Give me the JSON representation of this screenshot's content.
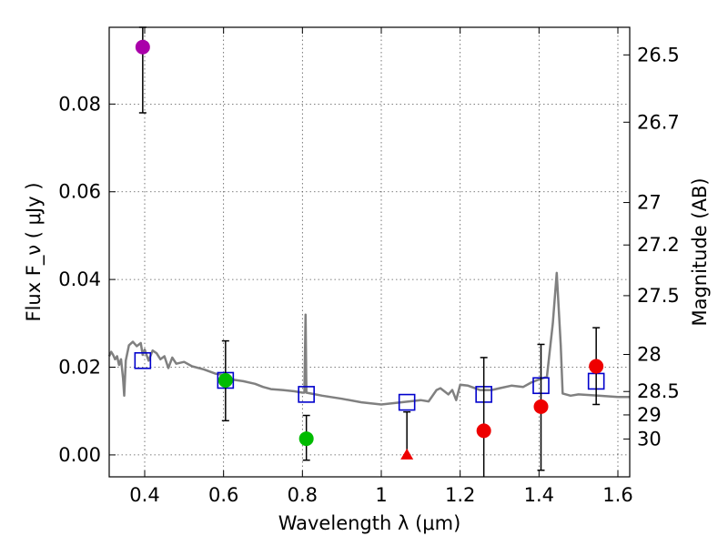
{
  "chart_data": {
    "type": "scatter",
    "xlabel": "Wavelength  λ (μm)",
    "ylabel": "Flux  F_ν  ( μJy )",
    "y2label": "Magnitude (AB)",
    "xlim": [
      0.31,
      1.63
    ],
    "ylim": [
      -0.005,
      0.0975
    ],
    "x_ticks": [
      0.4,
      0.6,
      0.8,
      1.0,
      1.2,
      1.4,
      1.6
    ],
    "x_tick_labels": [
      "0.4",
      "0.6",
      "0.8",
      "1",
      "1.2",
      "1.4",
      "1.6"
    ],
    "y_ticks": [
      0.0,
      0.02,
      0.04,
      0.06,
      0.08
    ],
    "y_tick_labels": [
      "0.00",
      "0.02",
      "0.04",
      "0.06",
      "0.08"
    ],
    "y2_ticks": [
      26.5,
      26.7,
      27,
      27.2,
      27.5,
      28,
      28.5,
      29,
      30
    ],
    "y2_tick_labels": [
      "26.5",
      "26.7",
      "27",
      "27.2",
      "27.5",
      "28",
      "28.5",
      "29",
      "30"
    ],
    "grid": true,
    "colors": {
      "model": "#808080",
      "model_points": "#0000cc",
      "purple": "#aa00aa",
      "green": "#00bb00",
      "red": "#ee0000",
      "errorbar": "#000000"
    },
    "model_spectrum": [
      [
        0.31,
        0.0225
      ],
      [
        0.315,
        0.0235
      ],
      [
        0.32,
        0.0228
      ],
      [
        0.325,
        0.0218
      ],
      [
        0.33,
        0.0225
      ],
      [
        0.335,
        0.0205
      ],
      [
        0.34,
        0.0218
      ],
      [
        0.345,
        0.0175
      ],
      [
        0.348,
        0.0135
      ],
      [
        0.352,
        0.0215
      ],
      [
        0.36,
        0.025
      ],
      [
        0.37,
        0.0258
      ],
      [
        0.38,
        0.0248
      ],
      [
        0.39,
        0.0255
      ],
      [
        0.395,
        0.0228
      ],
      [
        0.4,
        0.024
      ],
      [
        0.41,
        0.0215
      ],
      [
        0.42,
        0.0238
      ],
      [
        0.43,
        0.0232
      ],
      [
        0.44,
        0.0218
      ],
      [
        0.45,
        0.0225
      ],
      [
        0.46,
        0.0198
      ],
      [
        0.47,
        0.0222
      ],
      [
        0.48,
        0.0208
      ],
      [
        0.5,
        0.0212
      ],
      [
        0.52,
        0.0202
      ],
      [
        0.55,
        0.0195
      ],
      [
        0.58,
        0.0185
      ],
      [
        0.6,
        0.0182
      ],
      [
        0.62,
        0.0172
      ],
      [
        0.65,
        0.0168
      ],
      [
        0.68,
        0.0162
      ],
      [
        0.7,
        0.0155
      ],
      [
        0.72,
        0.015
      ],
      [
        0.75,
        0.0148
      ],
      [
        0.78,
        0.0145
      ],
      [
        0.8,
        0.0142
      ],
      [
        0.805,
        0.0142
      ],
      [
        0.808,
        0.032
      ],
      [
        0.81,
        0.0142
      ],
      [
        0.85,
        0.0135
      ],
      [
        0.9,
        0.0128
      ],
      [
        0.95,
        0.012
      ],
      [
        1.0,
        0.0115
      ],
      [
        1.05,
        0.012
      ],
      [
        1.1,
        0.0125
      ],
      [
        1.12,
        0.0122
      ],
      [
        1.14,
        0.0148
      ],
      [
        1.15,
        0.0152
      ],
      [
        1.17,
        0.0138
      ],
      [
        1.18,
        0.0148
      ],
      [
        1.19,
        0.0125
      ],
      [
        1.2,
        0.016
      ],
      [
        1.22,
        0.0158
      ],
      [
        1.25,
        0.0148
      ],
      [
        1.28,
        0.0148
      ],
      [
        1.3,
        0.0152
      ],
      [
        1.33,
        0.0158
      ],
      [
        1.36,
        0.0155
      ],
      [
        1.38,
        0.0165
      ],
      [
        1.4,
        0.0172
      ],
      [
        1.42,
        0.0178
      ],
      [
        1.435,
        0.03
      ],
      [
        1.445,
        0.0415
      ],
      [
        1.455,
        0.025
      ],
      [
        1.46,
        0.014
      ],
      [
        1.48,
        0.0135
      ],
      [
        1.5,
        0.0138
      ],
      [
        1.55,
        0.0135
      ],
      [
        1.6,
        0.0132
      ],
      [
        1.63,
        0.0132
      ]
    ],
    "model_points": [
      {
        "x": 0.395,
        "y": 0.0215
      },
      {
        "x": 0.605,
        "y": 0.017
      },
      {
        "x": 0.81,
        "y": 0.0138
      },
      {
        "x": 1.065,
        "y": 0.012
      },
      {
        "x": 1.26,
        "y": 0.0138
      },
      {
        "x": 1.405,
        "y": 0.0158
      },
      {
        "x": 1.545,
        "y": 0.0168
      }
    ],
    "observed": [
      {
        "x": 0.395,
        "y": 0.093,
        "ylow": 0.078,
        "yhigh": 0.0975,
        "color": "#aa00aa",
        "marker": "circle"
      },
      {
        "x": 0.605,
        "y": 0.017,
        "ylow": 0.0078,
        "yhigh": 0.026,
        "color": "#00bb00",
        "marker": "circle"
      },
      {
        "x": 0.81,
        "y": 0.0037,
        "ylow": -0.0012,
        "yhigh": 0.009,
        "color": "#00bb00",
        "marker": "circle"
      },
      {
        "x": 1.065,
        "y": 0.0,
        "ylow": 0.0,
        "yhigh": 0.0098,
        "color": "#ee0000",
        "marker": "triangle"
      },
      {
        "x": 1.26,
        "y": 0.0055,
        "ylow": -0.0055,
        "yhigh": 0.0222,
        "color": "#ee0000",
        "marker": "circle"
      },
      {
        "x": 1.405,
        "y": 0.011,
        "ylow": -0.0035,
        "yhigh": 0.0252,
        "color": "#ee0000",
        "marker": "circle"
      },
      {
        "x": 1.545,
        "y": 0.0202,
        "ylow": 0.0115,
        "yhigh": 0.029,
        "color": "#ee0000",
        "marker": "circle"
      }
    ]
  }
}
